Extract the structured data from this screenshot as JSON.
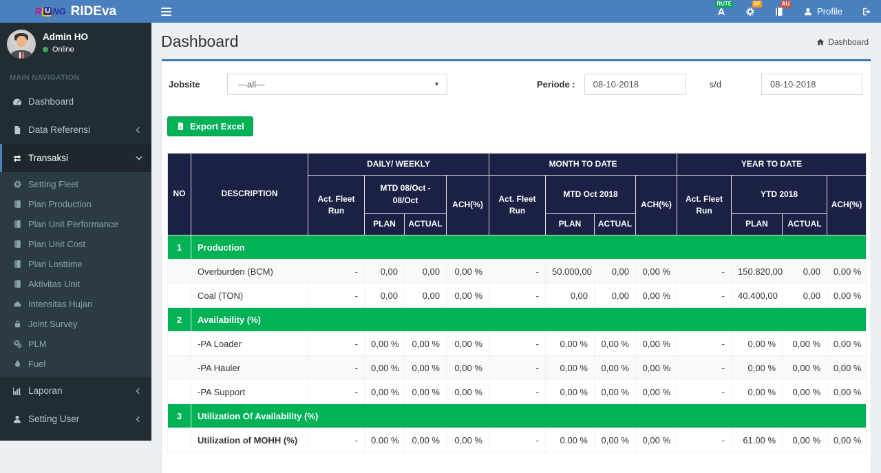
{
  "colors": {
    "navbar": "#4b80bf",
    "sidebar": "#222d32",
    "table_header_navy": "#1b2144",
    "section_green": "#00b156",
    "badge_rute": "#00a65a",
    "badge_sf": "#f39c12",
    "badge_au": "#dd4b39"
  },
  "navbar": {
    "logo": {
      "r": "R",
      "u": "U",
      "ng": "NG"
    },
    "brand": "RIDEva",
    "right": [
      {
        "icon": "route-icon",
        "badge": "RUTE",
        "badge_color": "#00a65a"
      },
      {
        "icon": "gear-icon",
        "badge": "SF",
        "badge_color": "#f39c12"
      },
      {
        "icon": "book-icon",
        "badge": "AU",
        "badge_color": "#dd4b39"
      },
      {
        "icon": "user-icon",
        "label": "Profile"
      },
      {
        "icon": "signout-icon"
      }
    ]
  },
  "sidebar": {
    "user": {
      "name": "Admin HO",
      "status": "Online"
    },
    "section_label": "MAIN NAVIGATION",
    "menu": [
      {
        "label": "Dashboard",
        "icon": "tachometer-icon"
      },
      {
        "label": "Data Referensi",
        "icon": "file-icon",
        "chevron": "left"
      },
      {
        "label": "Transaksi",
        "icon": "exchange-icon",
        "chevron": "down",
        "active": true,
        "children": [
          {
            "label": "Setting Fleet",
            "icon": "gear-icon"
          },
          {
            "label": "Plan Production",
            "icon": "book-icon"
          },
          {
            "label": "Plan Unit Performance",
            "icon": "book-icon"
          },
          {
            "label": "Plan Unit Cost",
            "icon": "book-icon"
          },
          {
            "label": "Plan Losttime",
            "icon": "book-icon"
          },
          {
            "label": "Aktivitas Unit",
            "icon": "book-icon"
          },
          {
            "label": "Intensitas Hujan",
            "icon": "cloud-icon"
          },
          {
            "label": "Joint Survey",
            "icon": "lock-icon"
          },
          {
            "label": "PLM",
            "icon": "cogs-icon"
          },
          {
            "label": "Fuel",
            "icon": "tint-icon"
          }
        ]
      },
      {
        "label": "Laporan",
        "icon": "bar-chart-icon",
        "chevron": "left"
      },
      {
        "label": "Setting User",
        "icon": "user-icon",
        "chevron": "left"
      }
    ]
  },
  "content": {
    "title": "Dashboard",
    "breadcrumb": {
      "icon": "home-icon",
      "label": "Dashboard"
    },
    "filters": {
      "jobsite_label": "Jobsite",
      "jobsite_value": "---all---",
      "periode_label": "Periode :",
      "date_from": "08-10-2018",
      "separator": "s/d",
      "date_to": "08-10-2018"
    },
    "export_label": "Export Excel"
  },
  "table": {
    "col_headers": {
      "no": "NO",
      "description": "DESCRIPTION",
      "groups": [
        {
          "title": "DAILY/ WEEKLY",
          "fleet": "Act. Fleet Run",
          "period": "MTD 08/Oct - 08/Oct",
          "plan": "PLAN",
          "actual": "ACTUAL",
          "ach": "ACH(%)"
        },
        {
          "title": "MONTH TO DATE",
          "fleet": "Act. Fleet Run",
          "period": "MTD Oct 2018",
          "plan": "PLAN",
          "actual": "ACTUAL",
          "ach": "ACH(%)"
        },
        {
          "title": "YEAR TO DATE",
          "fleet": "Act. Fleet Run",
          "period": "YTD 2018",
          "plan": "PLAN",
          "actual": "ACTUAL",
          "ach": "ACH(%)"
        }
      ]
    },
    "sections": [
      {
        "no": "1",
        "title": "Production",
        "rows": [
          {
            "label": "Overburden (BCM)",
            "values": [
              "-",
              "0,00",
              "0,00",
              "0,00 %",
              "-",
              "50.000,00",
              "0,00",
              "0,00 %",
              "-",
              "150.820,00",
              "0,00",
              "0,00 %"
            ]
          },
          {
            "label": "Coal (TON)",
            "values": [
              "-",
              "0,00",
              "0,00",
              "0,00 %",
              "-",
              "0,00",
              "0,00",
              "0,00 %",
              "-",
              "40.400,00",
              "0,00",
              "0,00 %"
            ]
          }
        ]
      },
      {
        "no": "2",
        "title": "Availability (%)",
        "rows": [
          {
            "label": "-PA Loader",
            "values": [
              "-",
              "0,00 %",
              "0,00 %",
              "0,00 %",
              "-",
              "0,00 %",
              "0,00 %",
              "0,00 %",
              "-",
              "0,00 %",
              "0,00 %",
              "0,00 %"
            ]
          },
          {
            "label": "-PA Hauler",
            "values": [
              "-",
              "0,00 %",
              "0,00 %",
              "0,00 %",
              "-",
              "0,00 %",
              "0,00 %",
              "0,00 %",
              "-",
              "0,00 %",
              "0,00 %",
              "0,00 %"
            ]
          },
          {
            "label": "-PA Support",
            "values": [
              "-",
              "0,00 %",
              "0,00 %",
              "0,00 %",
              "-",
              "0,00 %",
              "0,00 %",
              "0,00 %",
              "-",
              "0,00 %",
              "0,00 %",
              "0,00 %"
            ]
          }
        ]
      },
      {
        "no": "3",
        "title": "Utilization Of Availability (%)",
        "rows": [
          {
            "label": "Utilization of MOHH (%)",
            "bold": true,
            "values": [
              "-",
              "0.00 %",
              "0,00 %",
              "0,00 %",
              "-",
              "0.00 %",
              "0,00 %",
              "0,00 %",
              "-",
              "61.00 %",
              "0,00 %",
              "0,00 %"
            ]
          }
        ]
      }
    ]
  }
}
